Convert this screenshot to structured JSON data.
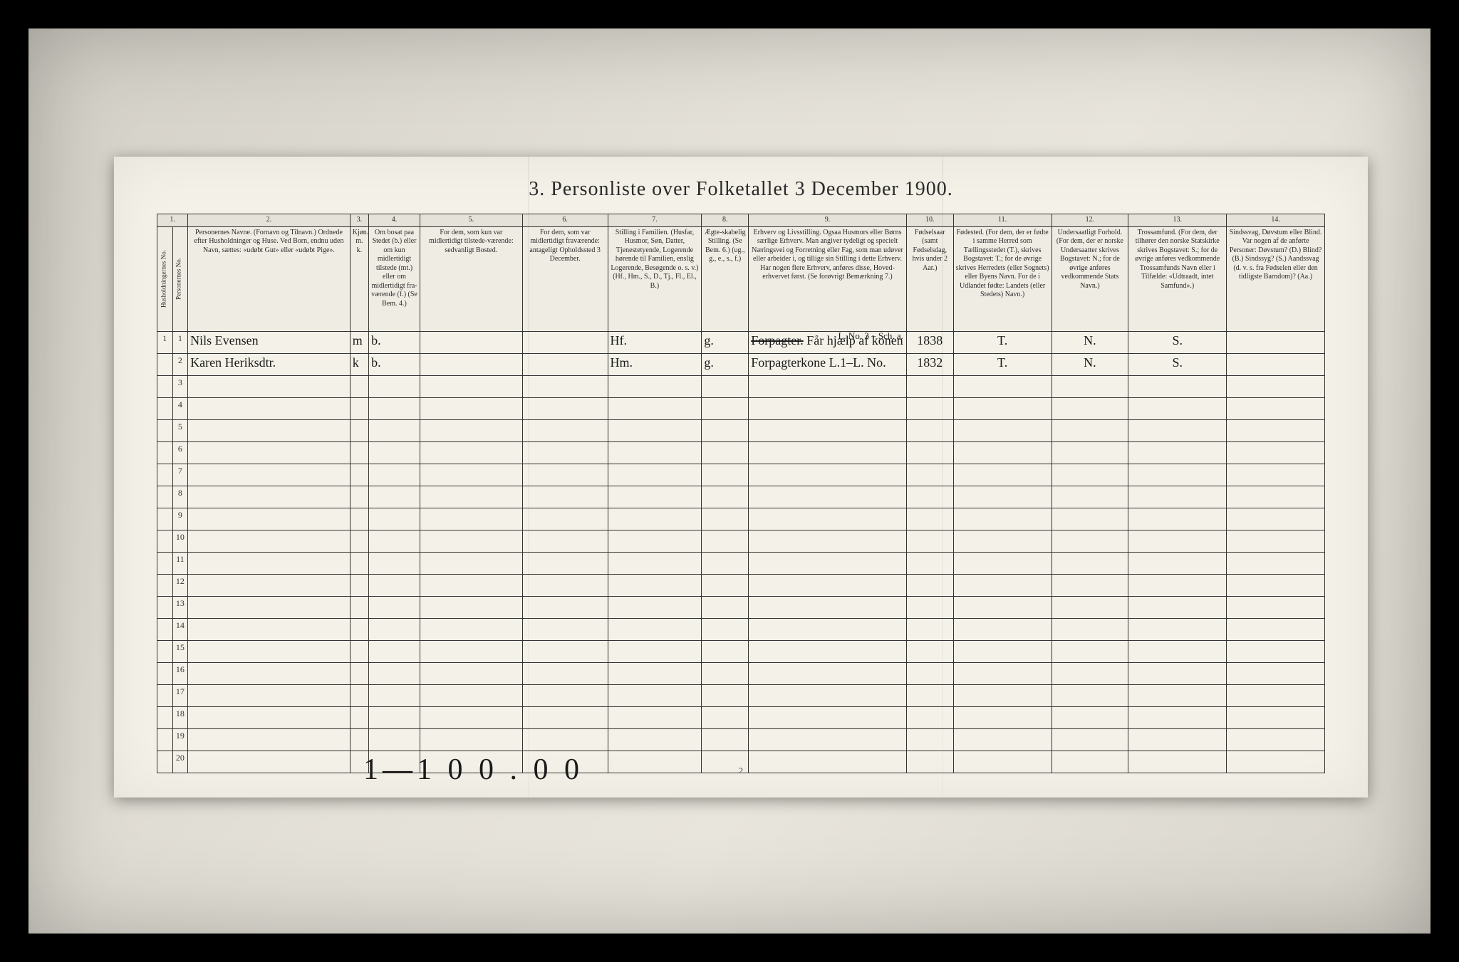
{
  "title": "3.  Personliste over Folketallet 3 December 1900.",
  "page_number": "2",
  "bottom_annotation": "1—1 0 0 . 0 0",
  "column_numbers": [
    "1.",
    "2.",
    "3.",
    "4.",
    "5.",
    "6.",
    "7.",
    "8.",
    "9.",
    "10.",
    "11.",
    "12.",
    "13.",
    "14."
  ],
  "headers": {
    "hh": "Husholdningernes No.",
    "pn": "Personernes No.",
    "name": "Personernes Navne.\n(Fornavn og Tilnavn.)\nOrdnede efter Husholdninger og Huse.\nVed Born, endnu uden Navn, sættes: «udøbt Gut» eller «udøbt Pige».",
    "sex": "Kjøn.\nm. k.",
    "res": "Om bosat paa Stedet (b.) eller om kun midlertidigt tilstede (mt.) eller om midlertidigt fra-værende (f.)\n(Se Bem. 4.)",
    "pres": "For dem, som kun var midlertidigt tilstede-værende:\nsedvanligt Bosted.",
    "abs": "For dem, som var midlertidigt fraværende:\nantageligt Opholdssted 3 December.",
    "fam": "Stilling i Familien.\n(Husfar, Husmor, Søn, Datter, Tjenestetyende, Logerende hørende til Familien, enslig Logerende, Besøgende o. s. v.)\n(Hf., Hm., S., D., Tj., Fl., El., B.)",
    "mar": "Ægte-skabelig Stilling.\n(Se Bem. 6.)\n(ug., g., e., s., f.)",
    "occ": "Erhverv og Livsstilling.\nOgsaa Husmors eller Børns særlige Erhverv. Man angiver tydeligt og specielt Næringsvei og Forretning eller Fag, som man udøver eller arbeider i, og tillige sin Stilling i dette Erhverv. Har nogen flere Erhverv, anføres disse, Hoved-erhvervet først.\n(Se forøvrigt Bemærkning 7.)",
    "yr": "Fødselsaar\n(samt Fødselsdag, hvis under 2 Aar.)",
    "bp": "Fødested.\n(For dem, der er fødte i samme Herred som Tællingsstedet (T.), skrives Bogstavet: T.; for de øvrige skrives Herredets (eller Sognets) eller Byens Navn. For de i Udlandet fødte: Landets (eller Stedets) Navn.)",
    "nat": "Undersaatligt Forhold.\n(For dem, der er norske Undersaatter skrives Bogstavet: N.; for de øvrige anføres vedkommende Stats Navn.)",
    "rel": "Trossamfund.\n(For dem, der tilhører den norske Statskirke skrives Bogstavet: S.; for de øvrige anføres vedkommende Trossamfunds Navn eller i Tilfælde: «Udtraadt, intet Samfund».)",
    "inf": "Sindssvag, Døvstum eller Blind.\nVar nogen af de anførte Personer: Døvstum? (D.) Blind? (B.) Sindssyg? (S.) Aandssvag (d. v. s. fra Fødselen eller den tidligste Barndom)? (Aa.)"
  },
  "rows": [
    {
      "hh": "1",
      "pn": "1",
      "name": "Nils Evensen",
      "sex": "m",
      "res": "b.",
      "pres": "",
      "abs": "",
      "fam": "Hf.",
      "mar": "g.",
      "occ_note": "L. No. 3 – Sch. a.",
      "occ_strike": "Forpagter.",
      "occ_rest": " Får hjælp af konen",
      "yr": "1838",
      "bp": "T.",
      "nat": "N.",
      "rel": "S.",
      "inf": ""
    },
    {
      "hh": "",
      "pn": "2",
      "name": "Karen Heriksdtr.",
      "sex": "k",
      "res": "b.",
      "pres": "",
      "abs": "",
      "fam": "Hm.",
      "mar": "g.",
      "occ_note": "",
      "occ_strike": "",
      "occ_rest": "Forpagterkone  L.1–L. No.",
      "yr": "1832",
      "bp": "T.",
      "nat": "N.",
      "rel": "S.",
      "inf": ""
    }
  ],
  "empty_row_count": 18
}
